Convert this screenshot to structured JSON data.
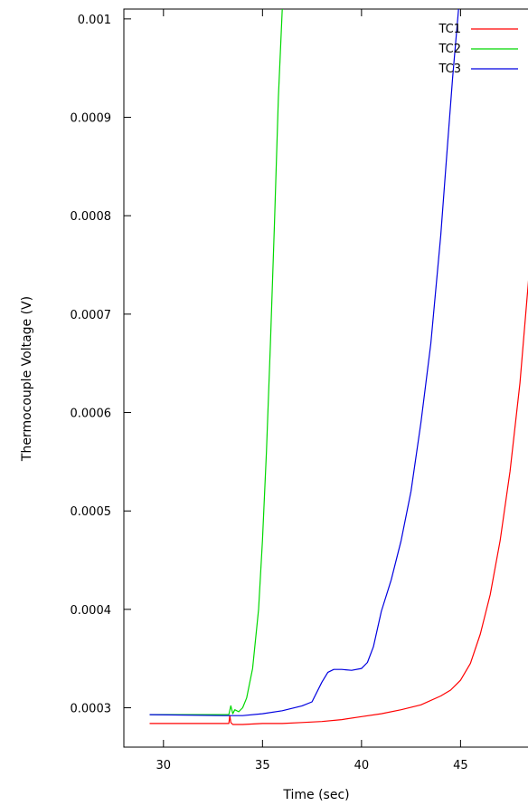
{
  "chart_data": {
    "type": "line",
    "title": "",
    "xlabel": "Time (sec)",
    "ylabel": "Thermocouple Voltage (V)",
    "xlim": [
      28,
      49
    ],
    "ylim": [
      0.00026,
      0.00101
    ],
    "x_ticks": [
      30,
      35,
      40,
      45
    ],
    "x_tick_labels": [
      "30",
      "35",
      "40",
      "45"
    ],
    "y_ticks": [
      0.0003,
      0.0004,
      0.0005,
      0.0006,
      0.0007,
      0.0008,
      0.0009,
      0.001
    ],
    "y_tick_labels": [
      "0.0003",
      "0.0004",
      "0.0005",
      "0.0006",
      "0.0007",
      "0.0008",
      "0.0009",
      "0.001"
    ],
    "grid": false,
    "legend_position": "top-right",
    "series": [
      {
        "name": "TC1",
        "color": "#ff0000",
        "x": [
          29.3,
          33.3,
          33.35,
          33.4,
          33.5,
          34,
          35,
          36,
          37,
          38,
          39,
          40,
          41,
          42,
          43,
          44,
          44.5,
          45,
          45.5,
          46,
          46.5,
          47,
          47.5,
          48,
          48.5,
          48.9
        ],
        "y": [
          0.000284,
          0.000284,
          0.000292,
          0.000285,
          0.000283,
          0.000283,
          0.000284,
          0.000284,
          0.000285,
          0.000286,
          0.000288,
          0.000291,
          0.000294,
          0.000298,
          0.000303,
          0.000312,
          0.000318,
          0.000328,
          0.000345,
          0.000375,
          0.000415,
          0.00047,
          0.00054,
          0.00063,
          0.00075,
          0.00088
        ]
      },
      {
        "name": "TC2",
        "color": "#00d800",
        "x": [
          29.3,
          33.3,
          33.4,
          33.5,
          33.6,
          33.8,
          34.0,
          34.2,
          34.5,
          34.8,
          35.0,
          35.2,
          35.4,
          35.6,
          35.8,
          36.0
        ],
        "y": [
          0.000293,
          0.000293,
          0.000302,
          0.000294,
          0.000298,
          0.000296,
          0.0003,
          0.00031,
          0.00034,
          0.0004,
          0.00047,
          0.00056,
          0.00067,
          0.00079,
          0.00092,
          0.00101
        ]
      },
      {
        "name": "TC3",
        "color": "#0000e0",
        "x": [
          29.3,
          33.0,
          34.0,
          35.0,
          36.0,
          37.0,
          37.5,
          38.0,
          38.3,
          38.6,
          39.0,
          39.5,
          40.0,
          40.3,
          40.6,
          41.0,
          41.5,
          42.0,
          42.5,
          43.0,
          43.5,
          44.0,
          44.3,
          44.6,
          44.9
        ],
        "y": [
          0.000293,
          0.000292,
          0.000292,
          0.000294,
          0.000297,
          0.000302,
          0.000306,
          0.000326,
          0.000336,
          0.000339,
          0.000339,
          0.000338,
          0.00034,
          0.000346,
          0.000362,
          0.000398,
          0.00043,
          0.00047,
          0.00052,
          0.00059,
          0.00067,
          0.00078,
          0.00086,
          0.00094,
          0.00101
        ]
      }
    ]
  }
}
